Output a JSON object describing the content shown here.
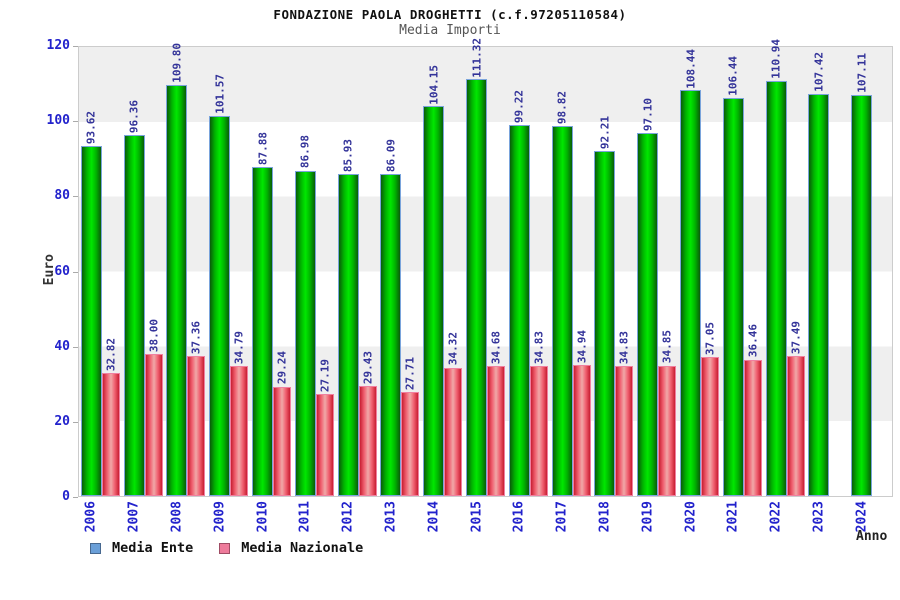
{
  "chart_data": {
    "type": "bar",
    "title": "FONDAZIONE PAOLA DROGHETTI (c.f.97205110584)",
    "subtitle": "Media Importi",
    "xlabel": "Anno",
    "ylabel": "Euro",
    "ylim": [
      0,
      120
    ],
    "yticks": [
      0,
      20,
      40,
      60,
      80,
      100,
      120
    ],
    "grid": "alternating 20-unit horizontal bands",
    "legend_position": "bottom-left",
    "categories": [
      "2006",
      "2007",
      "2008",
      "2009",
      "2010",
      "2011",
      "2012",
      "2013",
      "2014",
      "2015",
      "2016",
      "2017",
      "2018",
      "2019",
      "2020",
      "2021",
      "2022",
      "2023",
      "2024"
    ],
    "series": [
      {
        "name": "Media Ente",
        "values": [
          93.62,
          96.36,
          109.8,
          101.57,
          87.88,
          86.98,
          85.93,
          86.09,
          104.15,
          111.32,
          99.22,
          98.82,
          92.21,
          97.1,
          108.44,
          106.44,
          110.94,
          107.42,
          107.11
        ]
      },
      {
        "name": "Media Nazionale",
        "values": [
          32.82,
          38.0,
          37.36,
          34.79,
          29.24,
          27.19,
          29.43,
          27.71,
          34.32,
          34.68,
          34.83,
          34.94,
          34.83,
          34.85,
          37.05,
          36.46,
          37.49,
          null,
          null
        ]
      }
    ]
  },
  "colors": {
    "bar_green_center": "#00e800",
    "bar_green_edge": "#0a5c0a",
    "bar_red_center": "#f0a8a8",
    "bar_red_edge": "#c81e32",
    "legend_swatch_ente": "#6a9fd8",
    "legend_swatch_nazionale": "#ee7b9b",
    "axis_text_blue": "#2222cc",
    "value_label_navy": "#333399",
    "band_gray": "#efefef"
  }
}
